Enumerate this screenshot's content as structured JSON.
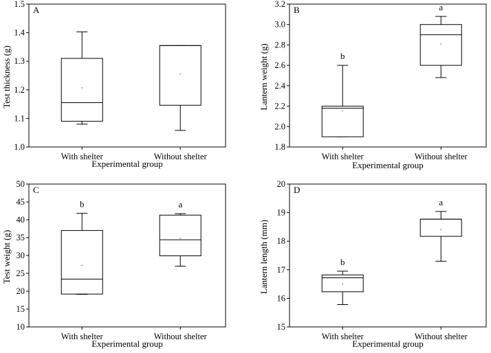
{
  "chart_data": [
    {
      "type": "box",
      "panel": "A",
      "xlabel": "Experimental group",
      "ylabel": "Test thickness (g)",
      "ylim": [
        1.0,
        1.5
      ],
      "yticks": [
        1.0,
        1.1,
        1.2,
        1.3,
        1.4,
        1.5
      ],
      "ytick_labels": [
        "1.0",
        "1.1",
        "1.2",
        "1.3",
        "1.4",
        "1.5"
      ],
      "categories": [
        "With shelter",
        "Without shelter"
      ],
      "boxes": [
        {
          "min": 1.08,
          "q1": 1.09,
          "median": 1.155,
          "q3": 1.31,
          "max": 1.403,
          "mean": 1.207,
          "sig": ""
        },
        {
          "min": 1.058,
          "q1": 1.146,
          "median": 1.355,
          "q3": 1.355,
          "max": 1.355,
          "mean": 1.255,
          "sig": ""
        }
      ]
    },
    {
      "type": "box",
      "panel": "B",
      "xlabel": "Experimental group",
      "ylabel": "Lantern weight (g)",
      "ylim": [
        1.8,
        3.2
      ],
      "yticks": [
        1.8,
        2.0,
        2.2,
        2.4,
        2.6,
        2.8,
        3.0,
        3.2
      ],
      "ytick_labels": [
        "1.8",
        "2.0",
        "2.2",
        "2.4",
        "2.6",
        "2.8",
        "3.0",
        "3.2"
      ],
      "categories": [
        "With shelter",
        "Without shelter"
      ],
      "boxes": [
        {
          "min": 1.9,
          "q1": 1.9,
          "median": 2.18,
          "q3": 2.2,
          "max": 2.6,
          "mean": 2.155,
          "sig": "b"
        },
        {
          "min": 2.48,
          "q1": 2.6,
          "median": 2.9,
          "q3": 3.0,
          "max": 3.08,
          "mean": 2.81,
          "sig": "a"
        }
      ]
    },
    {
      "type": "box",
      "panel": "C",
      "xlabel": "Experimental group",
      "ylabel": "Test weight (g)",
      "ylim": [
        10,
        50
      ],
      "yticks": [
        10,
        15,
        20,
        25,
        30,
        35,
        40,
        45,
        50
      ],
      "ytick_labels": [
        "10",
        "15",
        "20",
        "25",
        "30",
        "35",
        "40",
        "45",
        "50"
      ],
      "categories": [
        "With shelter",
        "Without shelter"
      ],
      "boxes": [
        {
          "min": 19.1,
          "q1": 19.2,
          "median": 23.4,
          "q3": 37.0,
          "max": 41.8,
          "mean": 27.2,
          "sig": "b"
        },
        {
          "min": 27.0,
          "q1": 29.9,
          "median": 34.4,
          "q3": 41.3,
          "max": 41.7,
          "mean": 34.8,
          "sig": "a"
        }
      ]
    },
    {
      "type": "box",
      "panel": "D",
      "xlabel": "Experimental group",
      "ylabel": "Lantern length (mm)",
      "ylim": [
        15,
        20
      ],
      "yticks": [
        15,
        16,
        17,
        18,
        19,
        20
      ],
      "ytick_labels": [
        "15",
        "16",
        "17",
        "18",
        "19",
        "20"
      ],
      "categories": [
        "With shelter",
        "Without shelter"
      ],
      "boxes": [
        {
          "min": 15.78,
          "q1": 16.23,
          "median": 16.72,
          "q3": 16.82,
          "max": 16.95,
          "mean": 16.5,
          "sig": "b"
        },
        {
          "min": 17.3,
          "q1": 18.17,
          "median": 18.77,
          "q3": 18.77,
          "max": 19.04,
          "mean": 18.4,
          "sig": "a"
        }
      ]
    }
  ]
}
